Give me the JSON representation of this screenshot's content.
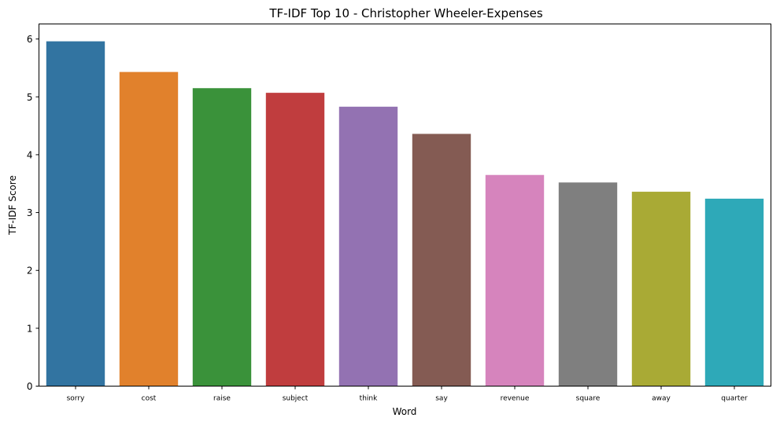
{
  "chart_data": {
    "type": "bar",
    "title": "TF-IDF Top 10 - Christopher Wheeler-Expenses",
    "xlabel": "Word",
    "ylabel": "TF-IDF Score",
    "categories": [
      "sorry",
      "cost",
      "raise",
      "subject",
      "think",
      "say",
      "revenue",
      "square",
      "away",
      "quarter"
    ],
    "values": [
      5.96,
      5.43,
      5.15,
      5.07,
      4.83,
      4.36,
      3.65,
      3.52,
      3.36,
      3.24
    ],
    "colors": [
      "#3274a1",
      "#e1812c",
      "#3a923a",
      "#c03d3e",
      "#9372b2",
      "#845b53",
      "#d684bd",
      "#7f7f7f",
      "#a9aa35",
      "#2ea9b8"
    ],
    "ylim": [
      0,
      6.26
    ],
    "yticks": [
      "0",
      "1",
      "2",
      "3",
      "4",
      "5",
      "6"
    ],
    "grid": false,
    "legend": "none"
  }
}
